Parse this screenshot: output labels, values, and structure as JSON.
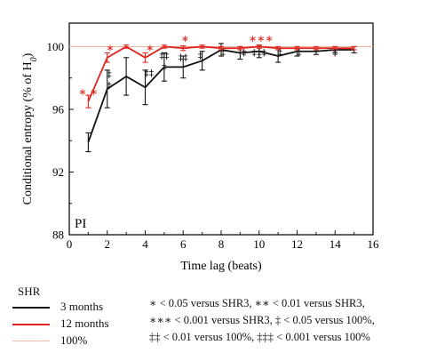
{
  "chart_data": {
    "type": "line",
    "panel_label": "PI",
    "xlabel": "Time lag (beats)",
    "ylabel": "Conditional entropy (% of H",
    "ylabel_sub": "0",
    "ylabel_end": ")",
    "xlim": [
      0,
      16
    ],
    "ylim": [
      88,
      101.5
    ],
    "xticks": [
      "0",
      "2",
      "4",
      "6",
      "8",
      "10",
      "12",
      "14",
      "16"
    ],
    "yticks": [
      "88",
      "92",
      "96",
      "100"
    ],
    "reference_line": {
      "name": "100%",
      "y": 100,
      "color": "#f2b8a6"
    },
    "series": [
      {
        "name": "3 months",
        "color": "#111111",
        "x": [
          1,
          2,
          3,
          4,
          5,
          6,
          7,
          8,
          9,
          10,
          11,
          12,
          13,
          14,
          15
        ],
        "y": [
          93.9,
          97.3,
          98.1,
          97.4,
          98.7,
          98.7,
          99.1,
          99.8,
          99.6,
          99.7,
          99.4,
          99.7,
          99.7,
          99.8,
          99.8
        ],
        "err": [
          0.6,
          1.2,
          1.2,
          1.1,
          0.9,
          0.7,
          0.6,
          0.4,
          0.4,
          0.4,
          0.4,
          0.3,
          0.2,
          0.2,
          0.2
        ]
      },
      {
        "name": "12 months",
        "color": "#e0261f",
        "x": [
          1,
          2,
          3,
          4,
          5,
          6,
          7,
          8,
          9,
          10,
          11,
          12,
          13,
          14,
          15
        ],
        "y": [
          96.5,
          99.3,
          100.0,
          99.3,
          100.0,
          99.9,
          100.0,
          99.9,
          99.9,
          100.0,
          99.9,
          99.9,
          99.9,
          99.9,
          99.9
        ],
        "err": [
          0.4,
          0.3,
          0.1,
          0.3,
          0.1,
          0.15,
          0.1,
          0.1,
          0.1,
          0.1,
          0.1,
          0.1,
          0.1,
          0.1,
          0.1
        ]
      }
    ],
    "annotations": [
      {
        "text": "∗ ∗",
        "x": 1,
        "y": 96.9,
        "color": "#e0261f"
      },
      {
        "text": "∗",
        "x": 2.15,
        "y": 99.7,
        "color": "#e0261f"
      },
      {
        "text": "∗",
        "x": 4.25,
        "y": 99.7,
        "color": "#e0261f"
      },
      {
        "text": "∗",
        "x": 6.1,
        "y": 100.3,
        "color": "#e0261f"
      },
      {
        "text": "∗∗∗",
        "x": 10.1,
        "y": 100.3,
        "color": "#e0261f"
      },
      {
        "text": "‡",
        "x": 2.1,
        "y": 98.0,
        "color": "#111111"
      },
      {
        "text": "‡",
        "x": 2.1,
        "y": 97.3,
        "color": "#111111"
      },
      {
        "text": "‡‡",
        "x": 4.2,
        "y": 98.1,
        "color": "#111111"
      },
      {
        "text": "‡‡",
        "x": 5.0,
        "y": 99.2,
        "color": "#111111"
      },
      {
        "text": "‡",
        "x": 5.0,
        "y": 98.5,
        "color": "#111111"
      },
      {
        "text": "‡‡",
        "x": 6.0,
        "y": 99.1,
        "color": "#111111"
      },
      {
        "text": "‡",
        "x": 6.9,
        "y": 99.2,
        "color": "#111111"
      },
      {
        "text": "‡",
        "x": 8.1,
        "y": 99.4,
        "color": "#111111"
      },
      {
        "text": "‡",
        "x": 9.2,
        "y": 99.4,
        "color": "#111111"
      },
      {
        "text": "‡‡‡",
        "x": 10.0,
        "y": 99.4,
        "color": "#111111"
      },
      {
        "text": "‡",
        "x": 11.1,
        "y": 99.4,
        "color": "#111111"
      },
      {
        "text": "‡",
        "x": 12.1,
        "y": 99.4,
        "color": "#111111"
      },
      {
        "text": "‡",
        "x": 14.0,
        "y": 99.4,
        "color": "#111111"
      }
    ]
  },
  "legend": {
    "title": "SHR",
    "items": [
      {
        "label": "3 months",
        "color": "#111111"
      },
      {
        "label": "12 months",
        "color": "#e0261f"
      },
      {
        "label": "100%",
        "color": "#f2b8a6"
      }
    ]
  },
  "notes": [
    "∗ < 0.05 versus SHR3, ∗∗ < 0.01 versus SHR3,",
    "∗∗∗ < 0.001 versus SHR3, ‡ < 0.05 versus 100%,",
    "‡‡ < 0.01 versus 100%, ‡‡‡ < 0.001 versus 100%"
  ]
}
